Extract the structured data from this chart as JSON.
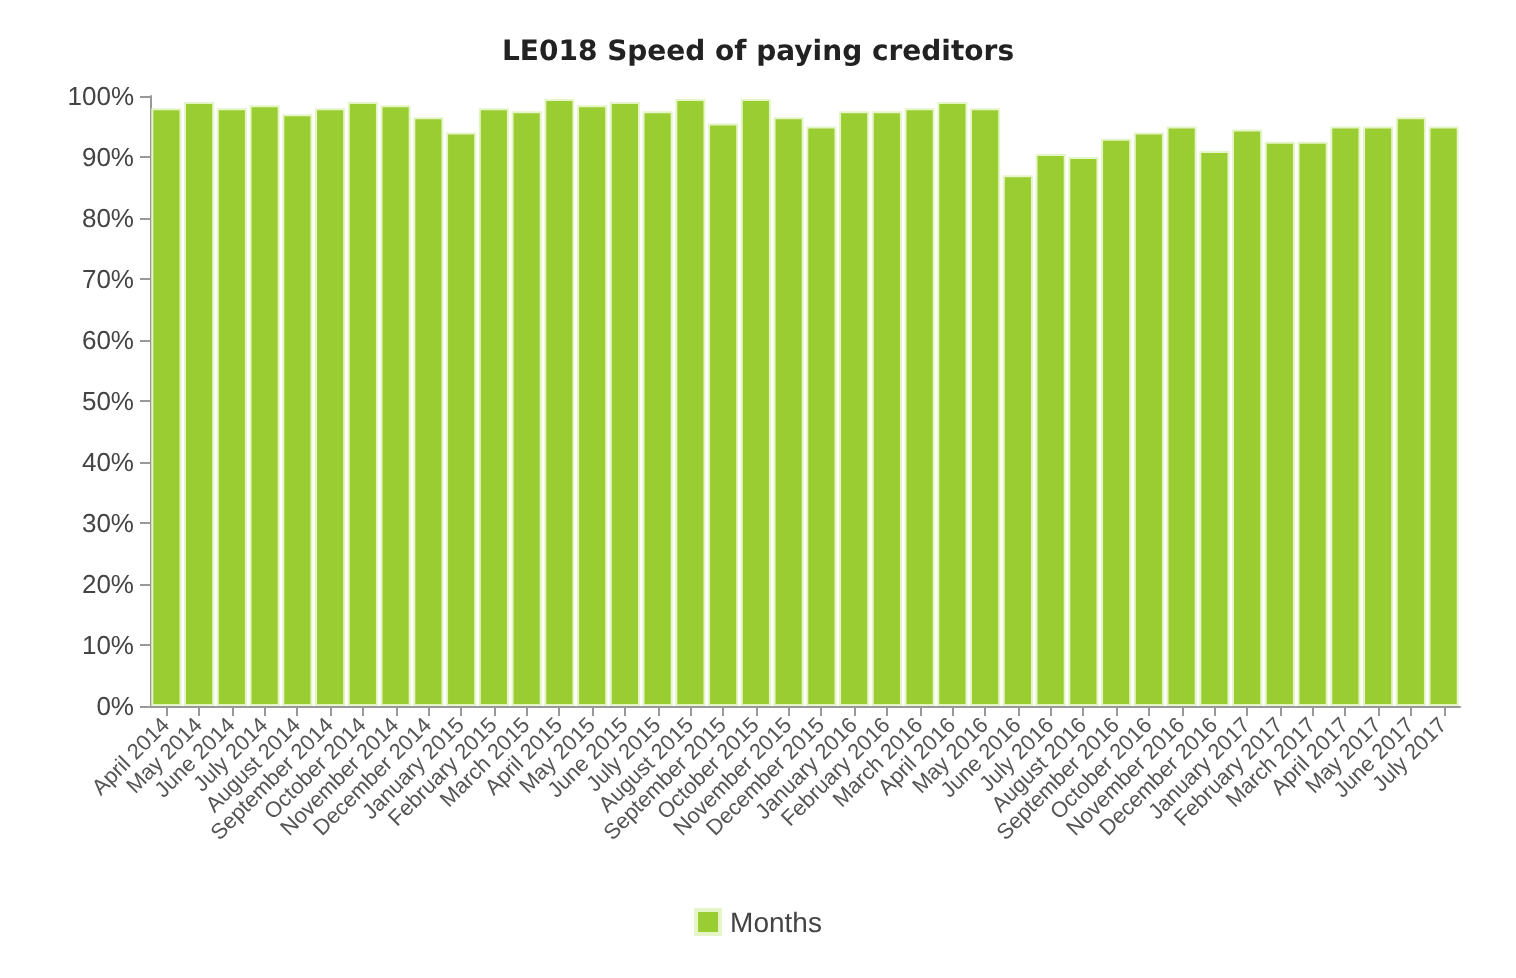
{
  "chart_data": {
    "type": "bar",
    "title": "LE018 Speed of paying creditors",
    "categories": [
      "April 2014",
      "May 2014",
      "June 2014",
      "July 2014",
      "August 2014",
      "September 2014",
      "October 2014",
      "November 2014",
      "December 2014",
      "January 2015",
      "February 2015",
      "March 2015",
      "April 2015",
      "May 2015",
      "June 2015",
      "July 2015",
      "August 2015",
      "September 2015",
      "October 2015",
      "November 2015",
      "December 2015",
      "January 2016",
      "February 2016",
      "March 2016",
      "April 2016",
      "May 2016",
      "June 2016",
      "July 2016",
      "August 2016",
      "September 2016",
      "October 2016",
      "November 2016",
      "December 2016",
      "January 2017",
      "February 2017",
      "March 2017",
      "April 2017",
      "May 2017",
      "June 2017",
      "July 2017"
    ],
    "series": [
      {
        "name": "Months",
        "color": "#9acd32",
        "values": [
          98,
          99,
          98,
          98.5,
          97,
          98,
          99,
          98.5,
          96.5,
          94,
          98,
          97.5,
          99.5,
          98.5,
          99,
          97.5,
          99.5,
          95.5,
          99.5,
          96.5,
          95,
          97.5,
          97.5,
          98,
          99,
          98,
          87,
          90.5,
          90,
          93,
          94,
          95,
          91,
          94.5,
          92.5,
          92.5,
          95,
          95,
          96.5,
          95
        ]
      }
    ],
    "ylim": [
      0,
      100
    ],
    "yticks": [
      {
        "value": 0,
        "label": "0%"
      },
      {
        "value": 10,
        "label": "10%"
      },
      {
        "value": 20,
        "label": "20%"
      },
      {
        "value": 30,
        "label": "30%"
      },
      {
        "value": 40,
        "label": "40%"
      },
      {
        "value": 50,
        "label": "50%"
      },
      {
        "value": 60,
        "label": "60%"
      },
      {
        "value": 70,
        "label": "70%"
      },
      {
        "value": 80,
        "label": "80%"
      },
      {
        "value": 90,
        "label": "90%"
      },
      {
        "value": 100,
        "label": "100%"
      }
    ],
    "grid": false,
    "legend": "bottom"
  }
}
